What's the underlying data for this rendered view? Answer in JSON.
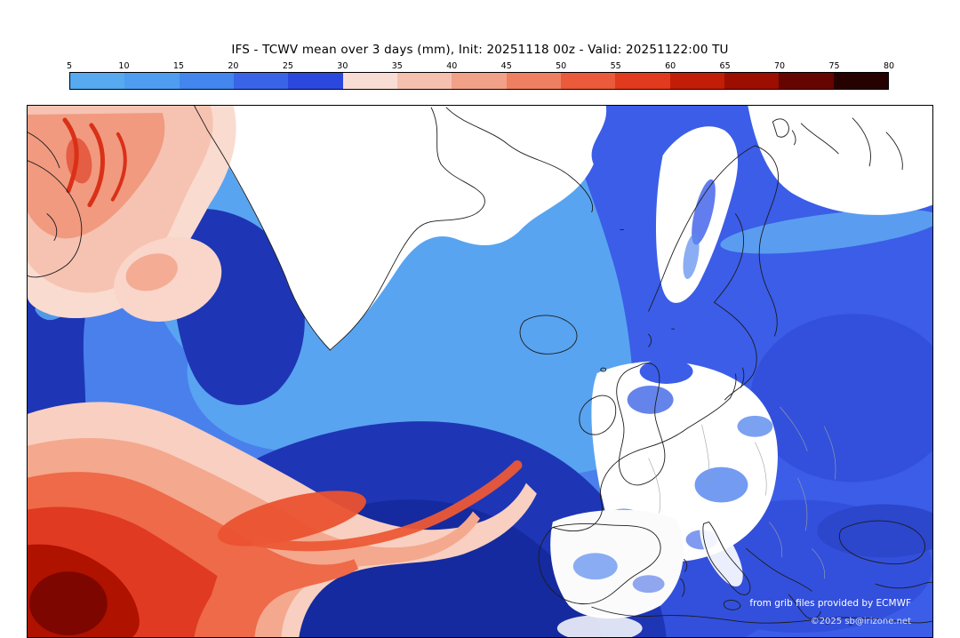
{
  "title": "IFS - TCWV mean over 3 days (mm), Init: 20251118 00z - Valid: 20251122:00 TU",
  "colorbar": {
    "ticks": [
      "5",
      "10",
      "15",
      "20",
      "25",
      "30",
      "35",
      "40",
      "45",
      "50",
      "55",
      "60",
      "65",
      "70",
      "75",
      "80"
    ],
    "colors": [
      "#57a9f0",
      "#4e9df0",
      "#4286ee",
      "#3a64e8",
      "#2b48de",
      "#f8ddd5",
      "#f6c0af",
      "#f2a189",
      "#ee7f60",
      "#ea5a3b",
      "#e13a1f",
      "#c21d07",
      "#9c0e00",
      "#660400",
      "#250200"
    ]
  },
  "credits": {
    "line1": "from grib files provided by ECMWF",
    "line2": "©2025 sb@irizone.net"
  }
}
